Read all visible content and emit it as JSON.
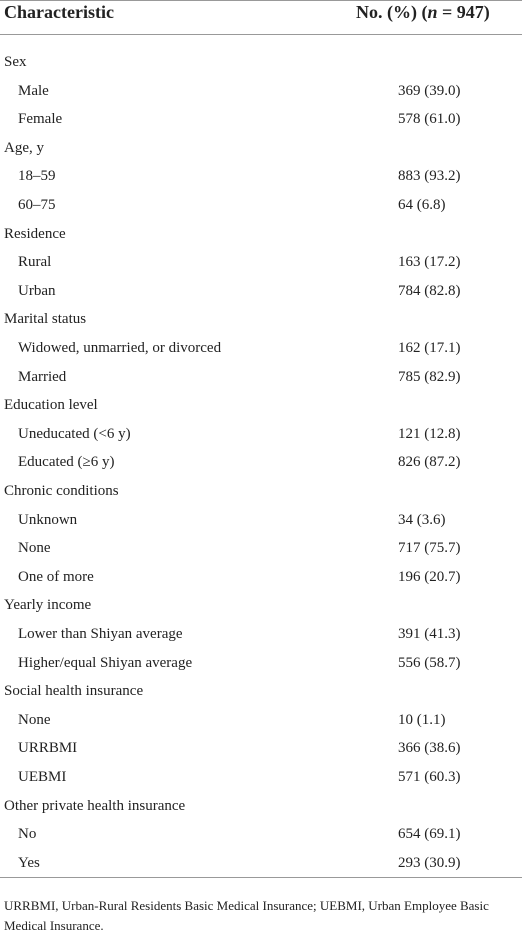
{
  "table": {
    "header": {
      "left": "Characteristic",
      "right": [
        "No. (%) (",
        "n",
        " = 947)"
      ]
    },
    "groups": [
      {
        "label": "Sex",
        "rows": [
          [
            "Male",
            "369 (39.0)"
          ],
          [
            "Female",
            "578 (61.0)"
          ]
        ]
      },
      {
        "label": "Age, y",
        "rows": [
          [
            "18–59",
            "883 (93.2)"
          ],
          [
            "60–75",
            "64 (6.8)"
          ]
        ]
      },
      {
        "label": "Residence",
        "rows": [
          [
            "Rural",
            "163 (17.2)"
          ],
          [
            "Urban",
            "784 (82.8)"
          ]
        ]
      },
      {
        "label": "Marital status",
        "rows": [
          [
            "Widowed, unmarried, or divorced",
            "162 (17.1)"
          ],
          [
            "Married",
            "785 (82.9)"
          ]
        ]
      },
      {
        "label": "Education level",
        "rows": [
          [
            "Uneducated (<6 y)",
            "121 (12.8)"
          ],
          [
            "Educated (≥6 y)",
            "826 (87.2)"
          ]
        ]
      },
      {
        "label": "Chronic conditions",
        "rows": [
          [
            "Unknown",
            "34 (3.6)"
          ],
          [
            "None",
            "717 (75.7)"
          ],
          [
            "One of more",
            "196 (20.7)"
          ]
        ]
      },
      {
        "label": "Yearly income",
        "rows": [
          [
            "Lower than Shiyan average",
            "391 (41.3)"
          ],
          [
            "Higher/equal Shiyan average",
            "556 (58.7)"
          ]
        ]
      },
      {
        "label": "Social health insurance",
        "rows": [
          [
            "None",
            "10 (1.1)"
          ],
          [
            "URRBMI",
            "366 (38.6)"
          ],
          [
            "UEBMI",
            "571 (60.3)"
          ]
        ]
      },
      {
        "label": "Other private health insurance",
        "rows": [
          [
            "No",
            "654 (69.1)"
          ],
          [
            "Yes",
            "293 (30.9)"
          ]
        ]
      }
    ],
    "footnote": "URRBMI, Urban-Rural Residents Basic Medical Insurance; UEBMI, Urban Employee Basic Medical Insurance."
  }
}
